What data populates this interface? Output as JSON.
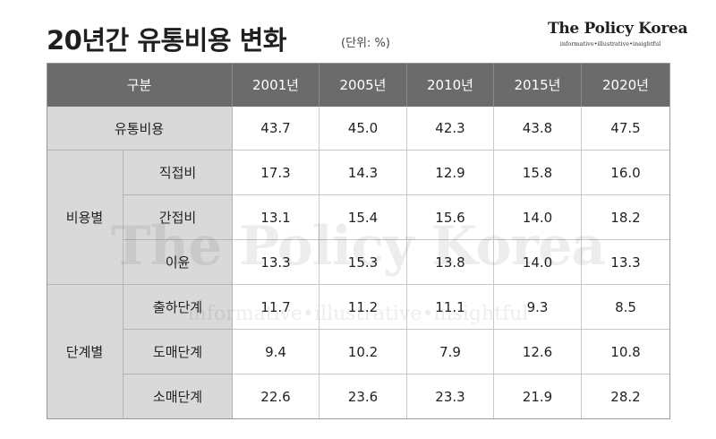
{
  "title": "20년간 유통비용 변화",
  "unit": "(단위: %)",
  "logo": {
    "name": "The Policy Korea",
    "tagline": "informative•illustrative•insightful"
  },
  "watermark": {
    "name": "The Policy Korea",
    "tagline": "informative•illustrative•insightful"
  },
  "table": {
    "corner": "구분",
    "years": [
      "2001년",
      "2005년",
      "2010년",
      "2015년",
      "2020년"
    ],
    "total": {
      "label": "유통비용",
      "values": [
        "43.7",
        "45.0",
        "42.3",
        "43.8",
        "47.5"
      ]
    },
    "groups": [
      {
        "label": "비용별",
        "rows": [
          {
            "label": "직접비",
            "values": [
              "17.3",
              "14.3",
              "12.9",
              "15.8",
              "16.0"
            ]
          },
          {
            "label": "간접비",
            "values": [
              "13.1",
              "15.4",
              "15.6",
              "14.0",
              "18.2"
            ]
          },
          {
            "label": "이윤",
            "values": [
              "13.3",
              "15.3",
              "13.8",
              "14.0",
              "13.3"
            ]
          }
        ]
      },
      {
        "label": "단계별",
        "rows": [
          {
            "label": "출하단계",
            "values": [
              "11.7",
              "11.2",
              "11.1",
              "9.3",
              "8.5"
            ]
          },
          {
            "label": "도매단계",
            "values": [
              "9.4",
              "10.2",
              "7.9",
              "12.6",
              "10.8"
            ]
          },
          {
            "label": "소매단계",
            "values": [
              "22.6",
              "23.6",
              "23.3",
              "21.9",
              "28.2"
            ]
          }
        ]
      }
    ]
  }
}
